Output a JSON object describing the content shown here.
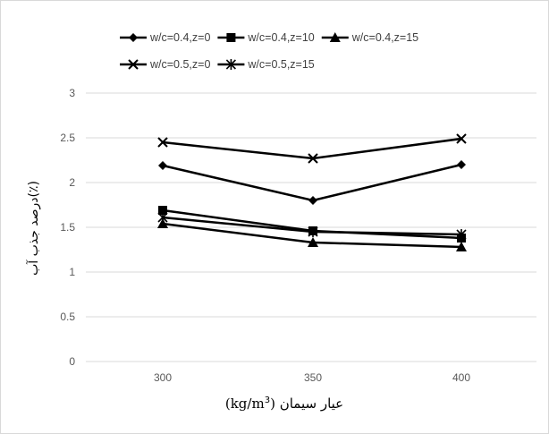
{
  "chart_data": {
    "type": "line",
    "xlabel_text": "عیار سیمان",
    "xlabel_unit": "(kg/m",
    "xlabel_sup": "3",
    "xlabel_close": ")",
    "ylabel": "درصد جذب آب(٪)",
    "categories": [
      "300",
      "350",
      "400"
    ],
    "ylim": [
      0,
      3
    ],
    "yticks": [
      "0",
      "0.5",
      "1",
      "1.5",
      "2",
      "2.5",
      "3"
    ],
    "grid": "horizontal",
    "legend_position": "top",
    "series": [
      {
        "name": "w/c=0.4,z=0",
        "marker": "diamond",
        "values": [
          2.19,
          1.8,
          2.2
        ]
      },
      {
        "name": "w/c=0.4,z=10",
        "marker": "square",
        "values": [
          1.69,
          1.46,
          1.38
        ]
      },
      {
        "name": "w/c=0.4,z=15",
        "marker": "triangle",
        "values": [
          1.54,
          1.33,
          1.28
        ]
      },
      {
        "name": "w/c=0.5,z=0",
        "marker": "x",
        "values": [
          2.45,
          2.27,
          2.49
        ]
      },
      {
        "name": "w/c=0.5,z=15",
        "marker": "star",
        "values": [
          1.61,
          1.45,
          1.42
        ]
      }
    ],
    "colors": {
      "series": "#000000",
      "grid": "#d9d9d9",
      "tick": "#595959"
    }
  }
}
